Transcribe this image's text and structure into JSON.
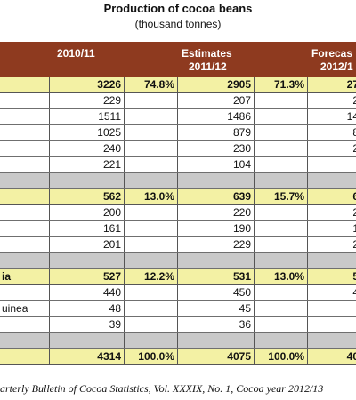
{
  "title": "Production of cocoa beans",
  "subtitle": "(thousand tonnes)",
  "headers": {
    "col1": "2010/11",
    "col2_line1": "Estimates",
    "col2_line2": "2011/12",
    "col3_line1": "Forecas",
    "col3_line2": "2012/1"
  },
  "rows": [
    {
      "type": "sub",
      "name": "",
      "v1": "3226",
      "p1": "74.8%",
      "v2": "2905",
      "p2": "71.3%",
      "v3": "27"
    },
    {
      "type": "data",
      "name": "",
      "v1": "229",
      "p1": "",
      "v2": "207",
      "p2": "",
      "v3": "2"
    },
    {
      "type": "data",
      "name": "",
      "v1": "1511",
      "p1": "",
      "v2": "1486",
      "p2": "",
      "v3": "14"
    },
    {
      "type": "data",
      "name": "",
      "v1": "1025",
      "p1": "",
      "v2": "879",
      "p2": "",
      "v3": "8"
    },
    {
      "type": "data",
      "name": "",
      "v1": "240",
      "p1": "",
      "v2": "230",
      "p2": "",
      "v3": "2"
    },
    {
      "type": "data",
      "name": "",
      "v1": "221",
      "p1": "",
      "v2": "104",
      "p2": "",
      "v3": ""
    },
    {
      "type": "gap",
      "name": "",
      "v1": "",
      "p1": "",
      "v2": "",
      "p2": "",
      "v3": ""
    },
    {
      "type": "sub",
      "name": "",
      "v1": "562",
      "p1": "13.0%",
      "v2": "639",
      "p2": "15.7%",
      "v3": "6"
    },
    {
      "type": "data",
      "name": "",
      "v1": "200",
      "p1": "",
      "v2": "220",
      "p2": "",
      "v3": "2"
    },
    {
      "type": "data",
      "name": "",
      "v1": "161",
      "p1": "",
      "v2": "190",
      "p2": "",
      "v3": "1"
    },
    {
      "type": "data",
      "name": "",
      "v1": "201",
      "p1": "",
      "v2": "229",
      "p2": "",
      "v3": "2"
    },
    {
      "type": "gap",
      "name": "",
      "v1": "",
      "p1": "",
      "v2": "",
      "p2": "",
      "v3": ""
    },
    {
      "type": "sub",
      "name": "ia",
      "v1": "527",
      "p1": "12.2%",
      "v2": "531",
      "p2": "13.0%",
      "v3": "5"
    },
    {
      "type": "white",
      "name": "",
      "v1": "440",
      "p1": "",
      "v2": "450",
      "p2": "",
      "v3": "4"
    },
    {
      "type": "white",
      "name": "uinea",
      "v1": "48",
      "p1": "",
      "v2": "45",
      "p2": "",
      "v3": ""
    },
    {
      "type": "white",
      "name": "",
      "v1": "39",
      "p1": "",
      "v2": "36",
      "p2": "",
      "v3": ""
    },
    {
      "type": "gap",
      "name": "",
      "v1": "",
      "p1": "",
      "v2": "",
      "p2": "",
      "v3": ""
    },
    {
      "type": "sub",
      "name": "",
      "v1": "4314",
      "p1": "100.0%",
      "v2": "4075",
      "p2": "100.0%",
      "v3": "40"
    }
  ],
  "source": "arterly Bulletin of Cocoa Statistics, Vol. XXXIX, No. 1, Cocoa year 2012/13"
}
